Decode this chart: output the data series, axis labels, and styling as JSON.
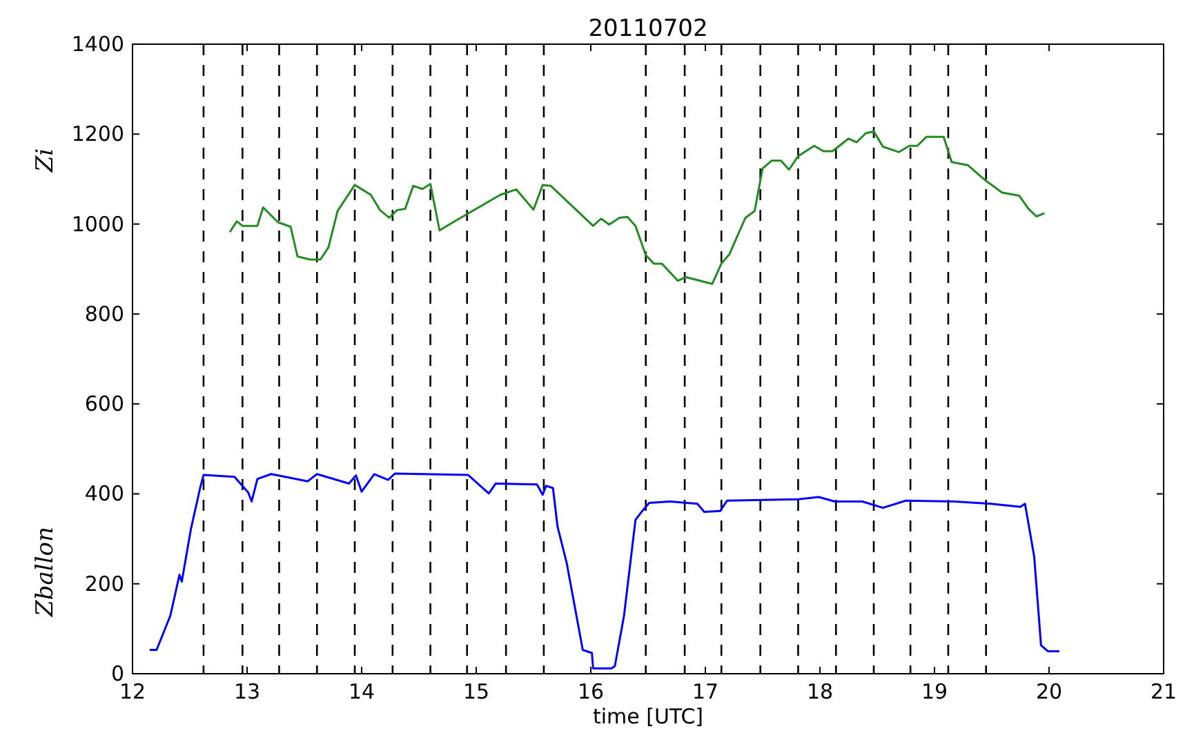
{
  "chart_data": {
    "type": "line",
    "title": "20110702",
    "xlabel": "time [UTC]",
    "xlim": [
      12,
      21
    ],
    "xticks": [
      12,
      13,
      14,
      15,
      16,
      17,
      18,
      19,
      20,
      21
    ],
    "ylim": [
      0,
      1400
    ],
    "yticks": [
      0,
      200,
      400,
      600,
      800,
      1000,
      1200,
      1400
    ],
    "annotations": [
      "Zi",
      "Zballon"
    ],
    "legend": false,
    "grid": false,
    "line_style": "solid",
    "marker": "none",
    "series": [
      {
        "color": "#228b22",
        "x": [
          12.85,
          12.91,
          12.96,
          13.09,
          13.14,
          13.27,
          13.38,
          13.44,
          13.55,
          13.64,
          13.71,
          13.79,
          13.94,
          14.08,
          14.16,
          14.24,
          14.31,
          14.38,
          14.45,
          14.53,
          14.6,
          14.68,
          14.81,
          15.21,
          15.35,
          15.5,
          15.58,
          15.65,
          16.02,
          16.09,
          16.16,
          16.25,
          16.32,
          16.39,
          16.48,
          16.55,
          16.62,
          16.76,
          16.83,
          17.06,
          17.14,
          17.21,
          17.35,
          17.43,
          17.5,
          17.58,
          17.66,
          17.73,
          17.81,
          17.95,
          18.03,
          18.11,
          18.25,
          18.32,
          18.4,
          18.47,
          18.55,
          18.69,
          18.78,
          18.85,
          18.93,
          19.08,
          19.15,
          19.29,
          19.44,
          19.59,
          19.74,
          19.82,
          19.89,
          19.96
        ],
        "values": [
          982,
          1006,
          996,
          996,
          1037,
          1004,
          994,
          928,
          921,
          921,
          948,
          1029,
          1087,
          1065,
          1031,
          1014,
          1031,
          1034,
          1085,
          1078,
          1089,
          986,
          1006,
          1065,
          1077,
          1032,
          1087,
          1085,
          996,
          1012,
          999,
          1014,
          1016,
          996,
          931,
          912,
          912,
          874,
          882,
          867,
          912,
          933,
          1014,
          1029,
          1124,
          1141,
          1141,
          1121,
          1151,
          1174,
          1162,
          1162,
          1190,
          1182,
          1202,
          1206,
          1172,
          1160,
          1174,
          1174,
          1194,
          1194,
          1138,
          1131,
          1098,
          1070,
          1063,
          1034,
          1017,
          1024
        ]
      },
      {
        "color": "#0000ff",
        "x": [
          12.15,
          12.21,
          12.33,
          12.41,
          12.43,
          12.51,
          12.59,
          12.62,
          12.89,
          13.01,
          13.04,
          13.09,
          13.21,
          13.53,
          13.61,
          13.89,
          13.95,
          14.0,
          14.11,
          14.23,
          14.29,
          14.93,
          15.11,
          15.17,
          15.53,
          15.58,
          15.61,
          15.67,
          15.71,
          15.79,
          15.93,
          16.01,
          16.02,
          16.18,
          16.21,
          16.29,
          16.39,
          16.45,
          16.51,
          16.69,
          16.93,
          16.99,
          17.13,
          17.19,
          17.81,
          17.99,
          18.13,
          18.37,
          18.55,
          18.75,
          19.17,
          19.49,
          19.75,
          19.79,
          19.87,
          19.93,
          19.99,
          20.09
        ],
        "values": [
          53,
          53,
          129,
          220,
          205,
          322,
          413,
          442,
          438,
          403,
          383,
          433,
          444,
          428,
          444,
          423,
          441,
          405,
          444,
          431,
          445,
          442,
          401,
          423,
          421,
          398,
          418,
          413,
          327,
          246,
          53,
          46,
          12,
          12,
          17,
          129,
          342,
          362,
          380,
          383,
          378,
          360,
          362,
          385,
          388,
          393,
          383,
          383,
          369,
          385,
          383,
          378,
          371,
          378,
          261,
          63,
          50,
          50
        ]
      }
    ],
    "ref_lines": [
      {
        "axis": "x",
        "value": 12.62,
        "color": "#000000",
        "line_style": "dashed"
      },
      {
        "axis": "x",
        "value": 12.96,
        "color": "#000000",
        "line_style": "dashed"
      },
      {
        "axis": "x",
        "value": 13.28,
        "color": "#000000",
        "line_style": "dashed"
      },
      {
        "axis": "x",
        "value": 13.61,
        "color": "#000000",
        "line_style": "dashed"
      },
      {
        "axis": "x",
        "value": 13.94,
        "color": "#000000",
        "line_style": "dashed"
      },
      {
        "axis": "x",
        "value": 14.27,
        "color": "#000000",
        "line_style": "dashed"
      },
      {
        "axis": "x",
        "value": 14.6,
        "color": "#000000",
        "line_style": "dashed"
      },
      {
        "axis": "x",
        "value": 14.92,
        "color": "#000000",
        "line_style": "dashed"
      },
      {
        "axis": "x",
        "value": 15.26,
        "color": "#000000",
        "line_style": "dashed"
      },
      {
        "axis": "x",
        "value": 15.59,
        "color": "#000000",
        "line_style": "dashed"
      },
      {
        "axis": "x",
        "value": 16.48,
        "color": "#000000",
        "line_style": "dashed"
      },
      {
        "axis": "x",
        "value": 16.82,
        "color": "#000000",
        "line_style": "dashed"
      },
      {
        "axis": "x",
        "value": 17.14,
        "color": "#000000",
        "line_style": "dashed"
      },
      {
        "axis": "x",
        "value": 17.48,
        "color": "#000000",
        "line_style": "dashed"
      },
      {
        "axis": "x",
        "value": 17.81,
        "color": "#000000",
        "line_style": "dashed"
      },
      {
        "axis": "x",
        "value": 18.14,
        "color": "#000000",
        "line_style": "dashed"
      },
      {
        "axis": "x",
        "value": 18.47,
        "color": "#000000",
        "line_style": "dashed"
      },
      {
        "axis": "x",
        "value": 18.79,
        "color": "#000000",
        "line_style": "dashed"
      },
      {
        "axis": "x",
        "value": 19.12,
        "color": "#000000",
        "line_style": "dashed"
      },
      {
        "axis": "x",
        "value": 19.45,
        "color": "#000000",
        "line_style": "dashed"
      }
    ]
  }
}
